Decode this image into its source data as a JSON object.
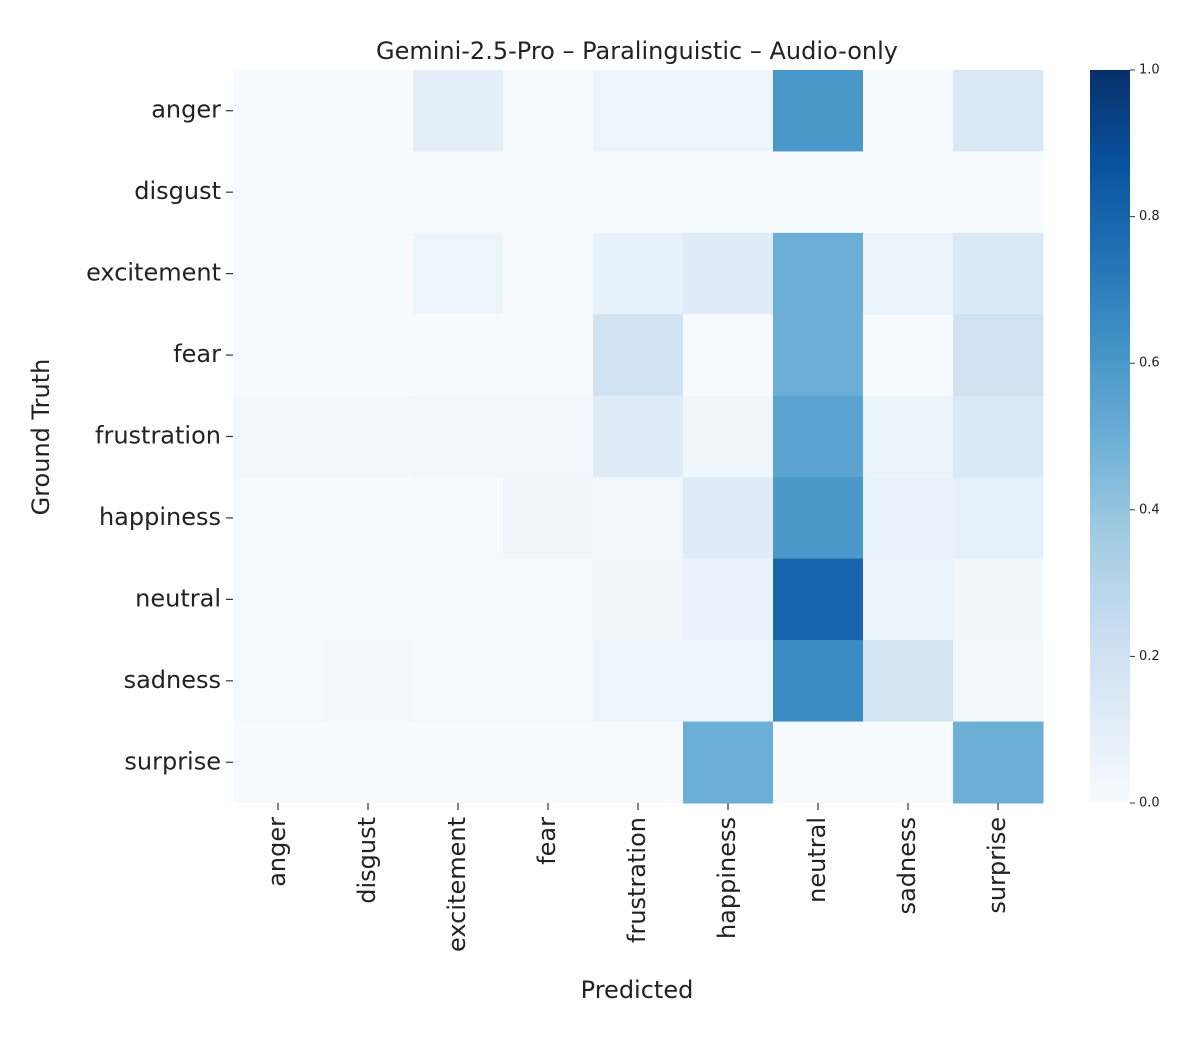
{
  "chart_data": {
    "type": "heatmap",
    "title": "Gemini-2.5-Pro – Paralinguistic – Audio-only",
    "x_label": "Predicted",
    "y_label": "Ground Truth",
    "x_categories": [
      "anger",
      "disgust",
      "excitement",
      "fear",
      "frustration",
      "happiness",
      "neutral",
      "sadness",
      "surprise"
    ],
    "y_categories": [
      "anger",
      "disgust",
      "excitement",
      "fear",
      "frustration",
      "happiness",
      "neutral",
      "sadness",
      "surprise"
    ],
    "z": [
      [
        0,
        0,
        0.1,
        0,
        0.05,
        0.05,
        0.6,
        0,
        0.15
      ],
      [
        0,
        0,
        0,
        0,
        0,
        0,
        0,
        0,
        0
      ],
      [
        0,
        0,
        0.05,
        0,
        0.08,
        0.12,
        0.5,
        0.06,
        0.14
      ],
      [
        0,
        0,
        0,
        0,
        0.2,
        0,
        0.5,
        0,
        0.2
      ],
      [
        0.02,
        0.02,
        0.03,
        0.03,
        0.12,
        0.04,
        0.55,
        0.06,
        0.14
      ],
      [
        0.01,
        0.01,
        0.01,
        0.04,
        0.03,
        0.12,
        0.6,
        0.07,
        0.09
      ],
      [
        0.01,
        0.01,
        0.01,
        0.01,
        0.04,
        0.07,
        0.8,
        0.06,
        0.04
      ],
      [
        0.01,
        0.02,
        0.01,
        0.01,
        0.05,
        0.05,
        0.65,
        0.18,
        0.02
      ],
      [
        0,
        0,
        0,
        0,
        0,
        0.5,
        0,
        0,
        0.5
      ]
    ],
    "zlim": [
      0,
      1
    ],
    "zticks": [
      {
        "value": 0,
        "label": "0.0"
      },
      {
        "value": 0.2,
        "label": "0.2"
      },
      {
        "value": 0.4,
        "label": "0.4"
      },
      {
        "value": 0.6,
        "label": "0.6"
      },
      {
        "value": 0.8,
        "label": "0.8"
      },
      {
        "value": 1,
        "label": "1.0"
      }
    ],
    "colorscale": [
      "#f7fbff",
      "#deebf7",
      "#c6dbef",
      "#9ecae1",
      "#6baed6",
      "#4292c6",
      "#2171b5",
      "#08519c",
      "#08306b"
    ]
  }
}
